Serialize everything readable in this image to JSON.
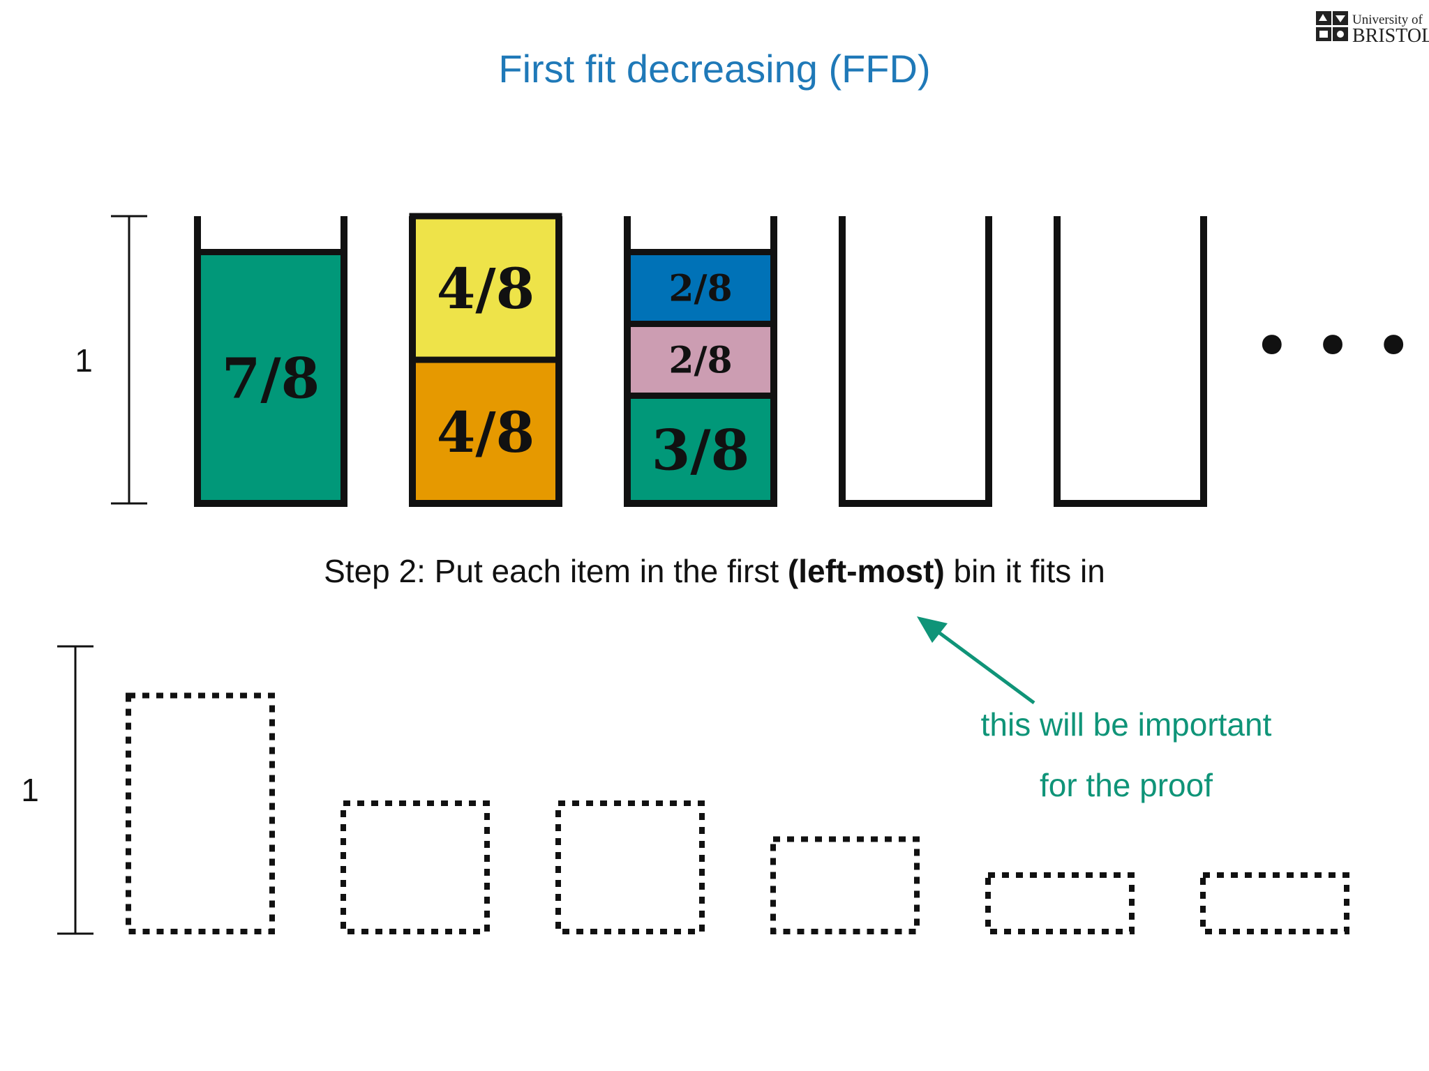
{
  "slide": {
    "title": "First fit decreasing (FFD)",
    "logo_line1": "University of",
    "logo_line2": "BRISTOL"
  },
  "top_diagram": {
    "scale_label": "1",
    "bins": [
      {
        "items": [
          {
            "label": "7/8",
            "size": 0.875,
            "color": "#019879"
          }
        ]
      },
      {
        "items": [
          {
            "label": "4/8",
            "size": 0.5,
            "color": "#e69900"
          },
          {
            "label": "4/8",
            "size": 0.5,
            "color": "#eee349"
          }
        ]
      },
      {
        "items": [
          {
            "label": "3/8",
            "size": 0.375,
            "color": "#019879"
          },
          {
            "label": "2/8",
            "size": 0.25,
            "color": "#cc9db2"
          },
          {
            "label": "2/8",
            "size": 0.25,
            "color": "#0072b7"
          }
        ]
      },
      {
        "items": []
      },
      {
        "items": []
      }
    ],
    "more_indicator": "• • •"
  },
  "step_text": {
    "prefix": "Step 2: Put each item in the first ",
    "bold": "(left-most)",
    "suffix": " bin it fits in"
  },
  "note": {
    "line1": "this will be important",
    "line2": "for the proof",
    "color": "#0f9478"
  },
  "bottom_diagram": {
    "scale_label": "1",
    "placeholder_sizes": [
      0.875,
      0.5,
      0.5,
      0.375,
      0.25,
      0.25
    ]
  }
}
